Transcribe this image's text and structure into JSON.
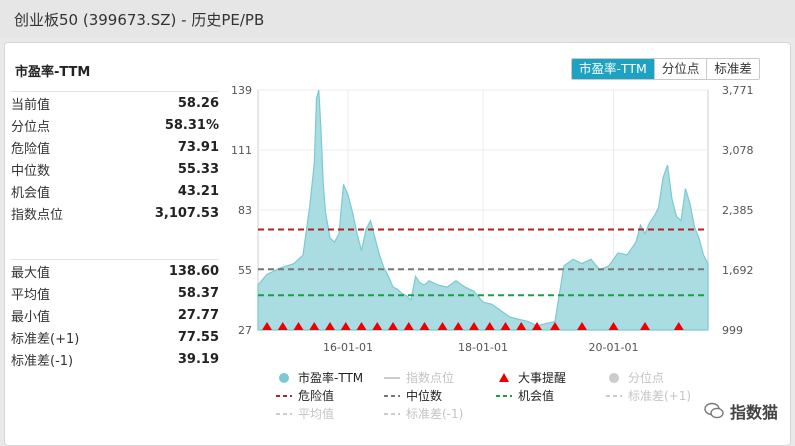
{
  "window": {
    "title": "创业板50 (399673.SZ) - 历史PE/PB"
  },
  "panel": {
    "title": "市盈率-TTM",
    "tabs": [
      {
        "label": "市盈率-TTM",
        "active": true
      },
      {
        "label": "分位点",
        "active": false
      },
      {
        "label": "标准差",
        "active": false
      }
    ]
  },
  "stats_top": [
    {
      "label": "当前值",
      "value": "58.26"
    },
    {
      "label": "分位点",
      "value": "58.31%"
    },
    {
      "label": "危险值",
      "value": "73.91"
    },
    {
      "label": "中位数",
      "value": "55.33"
    },
    {
      "label": "机会值",
      "value": "43.21"
    },
    {
      "label": "指数点位",
      "value": "3,107.53"
    }
  ],
  "stats_bottom": [
    {
      "label": "最大值",
      "value": "138.60"
    },
    {
      "label": "平均值",
      "value": "58.37"
    },
    {
      "label": "最小值",
      "value": "27.77"
    },
    {
      "label": "标准差(+1)",
      "value": "77.55"
    },
    {
      "label": "标准差(-1)",
      "value": "39.19"
    }
  ],
  "watermark": "指数猫",
  "colors": {
    "area_fill": "#a9dde2",
    "area_line": "#7cc9d2",
    "danger": "#b22222",
    "median": "#777777",
    "opportunity": "#1a9e4a",
    "event": "#ee0000",
    "accent": "#1ea2c2"
  },
  "chart_data": {
    "type": "area",
    "left_axis": {
      "ticks": [
        27,
        55,
        83,
        111,
        139
      ],
      "ylim": [
        27,
        139
      ]
    },
    "right_axis": {
      "ticks": [
        "999",
        "1,692",
        "2,385",
        "3,078",
        "3,771"
      ]
    },
    "x_ticks": [
      "16-01-01",
      "18-01-01",
      "20-01-01"
    ],
    "series": [
      {
        "name": "市盈率-TTM",
        "x": [
          0,
          0.02,
          0.05,
          0.08,
          0.1,
          0.115,
          0.125,
          0.13,
          0.135,
          0.14,
          0.145,
          0.15,
          0.16,
          0.17,
          0.18,
          0.19,
          0.2,
          0.21,
          0.22,
          0.23,
          0.24,
          0.25,
          0.26,
          0.27,
          0.28,
          0.29,
          0.3,
          0.31,
          0.32,
          0.33,
          0.34,
          0.35,
          0.36,
          0.37,
          0.38,
          0.39,
          0.4,
          0.42,
          0.44,
          0.46,
          0.48,
          0.5,
          0.52,
          0.54,
          0.56,
          0.58,
          0.6,
          0.62,
          0.64,
          0.66,
          0.68,
          0.7,
          0.72,
          0.74,
          0.76,
          0.78,
          0.8,
          0.82,
          0.84,
          0.85,
          0.86,
          0.87,
          0.88,
          0.89,
          0.9,
          0.91,
          0.92,
          0.93,
          0.94,
          0.95,
          0.96,
          0.97,
          0.98,
          0.99,
          1.0
        ],
        "values": [
          48,
          53,
          56,
          58,
          62,
          85,
          105,
          135,
          139,
          120,
          95,
          82,
          70,
          68,
          72,
          95,
          90,
          82,
          72,
          64,
          74,
          78,
          70,
          62,
          56,
          52,
          47,
          46,
          44,
          43,
          41,
          52,
          49,
          48,
          50,
          49,
          48,
          47,
          50,
          47,
          45,
          40,
          39,
          36,
          33,
          32,
          31,
          29,
          30,
          31,
          57,
          60,
          58,
          60,
          55,
          57,
          63,
          62,
          68,
          76,
          72,
          77,
          80,
          84,
          98,
          104,
          88,
          80,
          78,
          93,
          86,
          75,
          70,
          62,
          58
        ]
      }
    ],
    "reference_lines": [
      {
        "name": "危险值",
        "value": 73.91
      },
      {
        "name": "中位数",
        "value": 55.33
      },
      {
        "name": "机会值",
        "value": 43.21
      }
    ],
    "events": [
      0.02,
      0.055,
      0.09,
      0.125,
      0.16,
      0.195,
      0.23,
      0.265,
      0.3,
      0.335,
      0.37,
      0.41,
      0.445,
      0.48,
      0.515,
      0.55,
      0.585,
      0.62,
      0.66,
      0.72,
      0.79,
      0.86,
      0.935
    ],
    "legend": [
      {
        "label": "市盈率-TTM",
        "kind": "dot",
        "color": "#7cc9d2",
        "muted": false
      },
      {
        "label": "指数点位",
        "kind": "line",
        "color": "#cccccc",
        "muted": true
      },
      {
        "label": "大事提醒",
        "kind": "triangle",
        "color": "#ee0000",
        "muted": false
      },
      {
        "label": "分位点",
        "kind": "dot",
        "color": "#cccccc",
        "muted": true
      },
      {
        "label": "危险值",
        "kind": "dash",
        "color": "#b22222",
        "muted": false
      },
      {
        "label": "中位数",
        "kind": "dash",
        "color": "#777777",
        "muted": false
      },
      {
        "label": "机会值",
        "kind": "dash",
        "color": "#1a9e4a",
        "muted": false
      },
      {
        "label": "标准差(+1)",
        "kind": "dash",
        "color": "#cccccc",
        "muted": true
      },
      {
        "label": "平均值",
        "kind": "dash",
        "color": "#cccccc",
        "muted": true
      },
      {
        "label": "标准差(-1)",
        "kind": "dash",
        "color": "#cccccc",
        "muted": true
      }
    ]
  }
}
